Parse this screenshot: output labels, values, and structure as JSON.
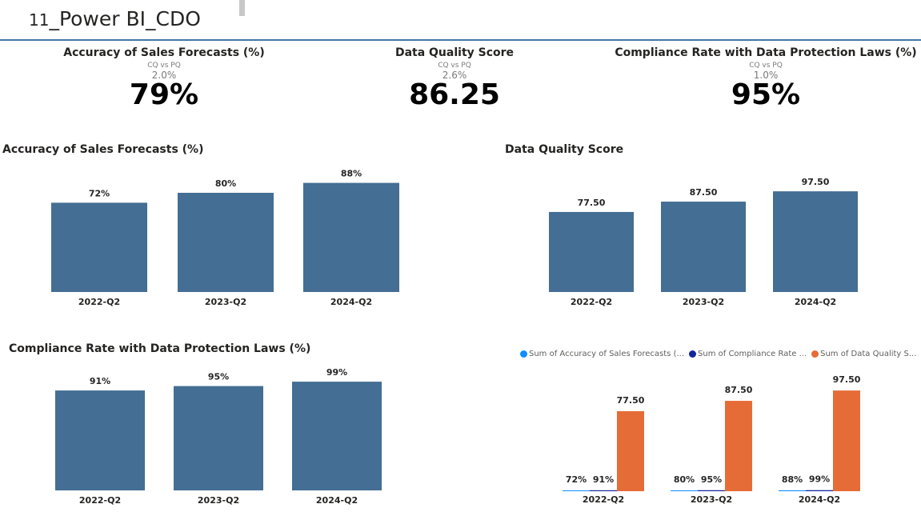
{
  "report": {
    "title_prefix": "11",
    "title_main": "_Power BI_CDO"
  },
  "kpis": [
    {
      "label": "Accuracy of Sales Forecasts (%)",
      "comparison": "CQ vs PQ",
      "delta": "2.0%",
      "value": "79%"
    },
    {
      "label": "Data Quality Score",
      "comparison": "CQ vs PQ",
      "delta": "2.6%",
      "value": "86.25"
    },
    {
      "label": "Compliance Rate with Data Protection Laws (%)",
      "comparison": "CQ vs PQ",
      "delta": "1.0%",
      "value": "95%"
    }
  ],
  "colors": {
    "bar": "#446e94",
    "accuracy": "#118dff",
    "compliance": "#12239e",
    "quality": "#e66c37",
    "rule": "#3f77a8"
  },
  "chart_data": [
    {
      "type": "bar",
      "title": "Accuracy of Sales Forecasts (%)",
      "categories": [
        "2022-Q2",
        "2023-Q2",
        "2024-Q2"
      ],
      "values": [
        72,
        80,
        88
      ],
      "labels": [
        "72%",
        "80%",
        "88%"
      ],
      "ylim": [
        0,
        100
      ]
    },
    {
      "type": "bar",
      "title": "Data Quality Score",
      "categories": [
        "2022-Q2",
        "2023-Q2",
        "2024-Q2"
      ],
      "values": [
        77.5,
        87.5,
        97.5
      ],
      "labels": [
        "77.50",
        "87.50",
        "97.50"
      ],
      "ylim": [
        0,
        110
      ]
    },
    {
      "type": "bar",
      "title": "Compliance Rate with Data Protection Laws (%)",
      "categories": [
        "2022-Q2",
        "2023-Q2",
        "2024-Q2"
      ],
      "values": [
        91,
        95,
        99
      ],
      "labels": [
        "91%",
        "95%",
        "99%"
      ],
      "ylim": [
        0,
        110
      ]
    },
    {
      "type": "bar",
      "title": "",
      "legend_position": "top",
      "categories": [
        "2022-Q2",
        "2023-Q2",
        "2024-Q2"
      ],
      "series": [
        {
          "name": "Sum of Accuracy of Sales Forecasts (...",
          "values": [
            0.72,
            0.8,
            0.88
          ],
          "labels": [
            "72%",
            "80%",
            "88%"
          ]
        },
        {
          "name": "Sum of Compliance Rate ...",
          "values": [
            0.91,
            0.95,
            0.99
          ],
          "labels": [
            "91%",
            "95%",
            "99%"
          ]
        },
        {
          "name": "Sum of Data Quality S...",
          "values": [
            77.5,
            87.5,
            97.5
          ],
          "labels": [
            "77.50",
            "87.50",
            "97.50"
          ]
        }
      ],
      "ylim": [
        0,
        110
      ]
    }
  ]
}
